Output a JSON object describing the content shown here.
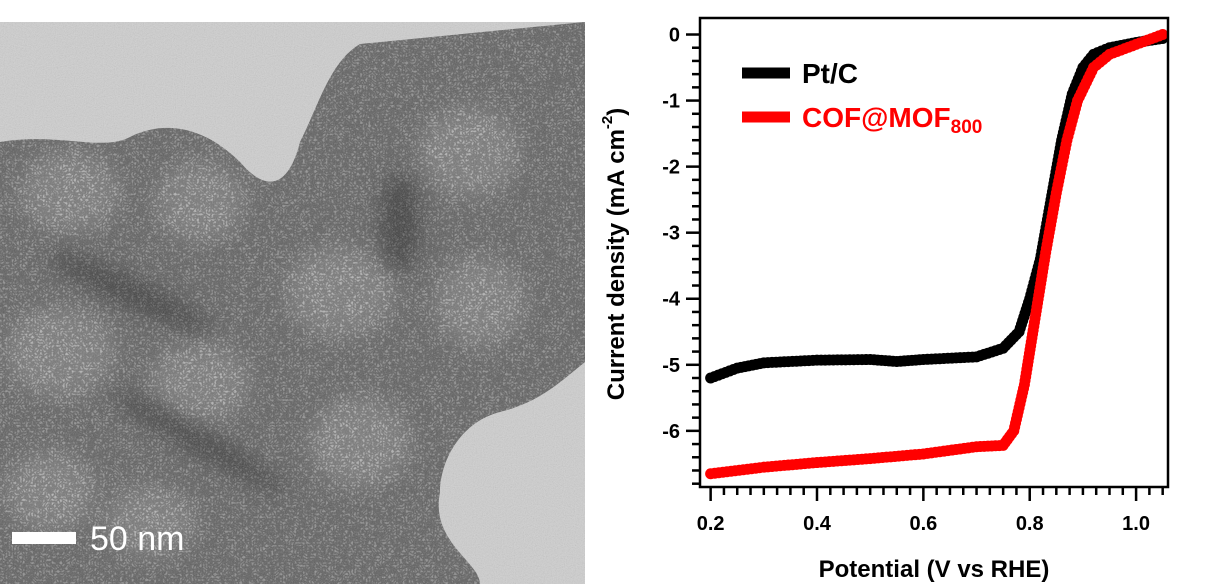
{
  "micrograph": {
    "scale_bar_label": "50 nm"
  },
  "chart_data": {
    "type": "scatter",
    "xlabel": "Potential (V vs RHE)",
    "ylabel": "Current density (mA cm",
    "ylabel_superscript": "-2",
    "ylabel_close": ")",
    "xlim": [
      0.18,
      1.06
    ],
    "ylim": [
      -6.85,
      0.25
    ],
    "xticks": [
      0.2,
      0.4,
      0.6,
      0.8,
      1.0
    ],
    "xtick_labels": [
      "0.2",
      "0.4",
      "0.6",
      "0.8",
      "1.0"
    ],
    "yticks": [
      0,
      -1,
      -2,
      -3,
      -4,
      -5,
      -6
    ],
    "ytick_labels": [
      "0",
      "-1",
      "-2",
      "-3",
      "-4",
      "-5",
      "-6"
    ],
    "grid": false,
    "legend_position": "top-left",
    "series": [
      {
        "name": "Pt/C",
        "color": "#000000",
        "x": [
          0.2,
          0.25,
          0.3,
          0.4,
          0.5,
          0.55,
          0.6,
          0.7,
          0.75,
          0.78,
          0.8,
          0.82,
          0.84,
          0.86,
          0.88,
          0.9,
          0.92,
          0.95,
          1.0,
          1.05
        ],
        "y": [
          -5.2,
          -5.05,
          -4.97,
          -4.93,
          -4.92,
          -4.95,
          -4.92,
          -4.88,
          -4.75,
          -4.5,
          -4.0,
          -3.4,
          -2.5,
          -1.6,
          -0.9,
          -0.5,
          -0.3,
          -0.2,
          -0.12,
          -0.06
        ]
      },
      {
        "name": "COF@MOF",
        "name_subscript": "800",
        "color": "#ff0000",
        "x": [
          0.2,
          0.3,
          0.4,
          0.5,
          0.6,
          0.7,
          0.75,
          0.77,
          0.79,
          0.81,
          0.83,
          0.85,
          0.87,
          0.89,
          0.92,
          0.95,
          1.0,
          1.05
        ],
        "y": [
          -6.65,
          -6.55,
          -6.48,
          -6.42,
          -6.35,
          -6.24,
          -6.22,
          -6.0,
          -5.3,
          -4.3,
          -3.3,
          -2.4,
          -1.6,
          -1.0,
          -0.5,
          -0.3,
          -0.15,
          0.0
        ]
      }
    ]
  }
}
